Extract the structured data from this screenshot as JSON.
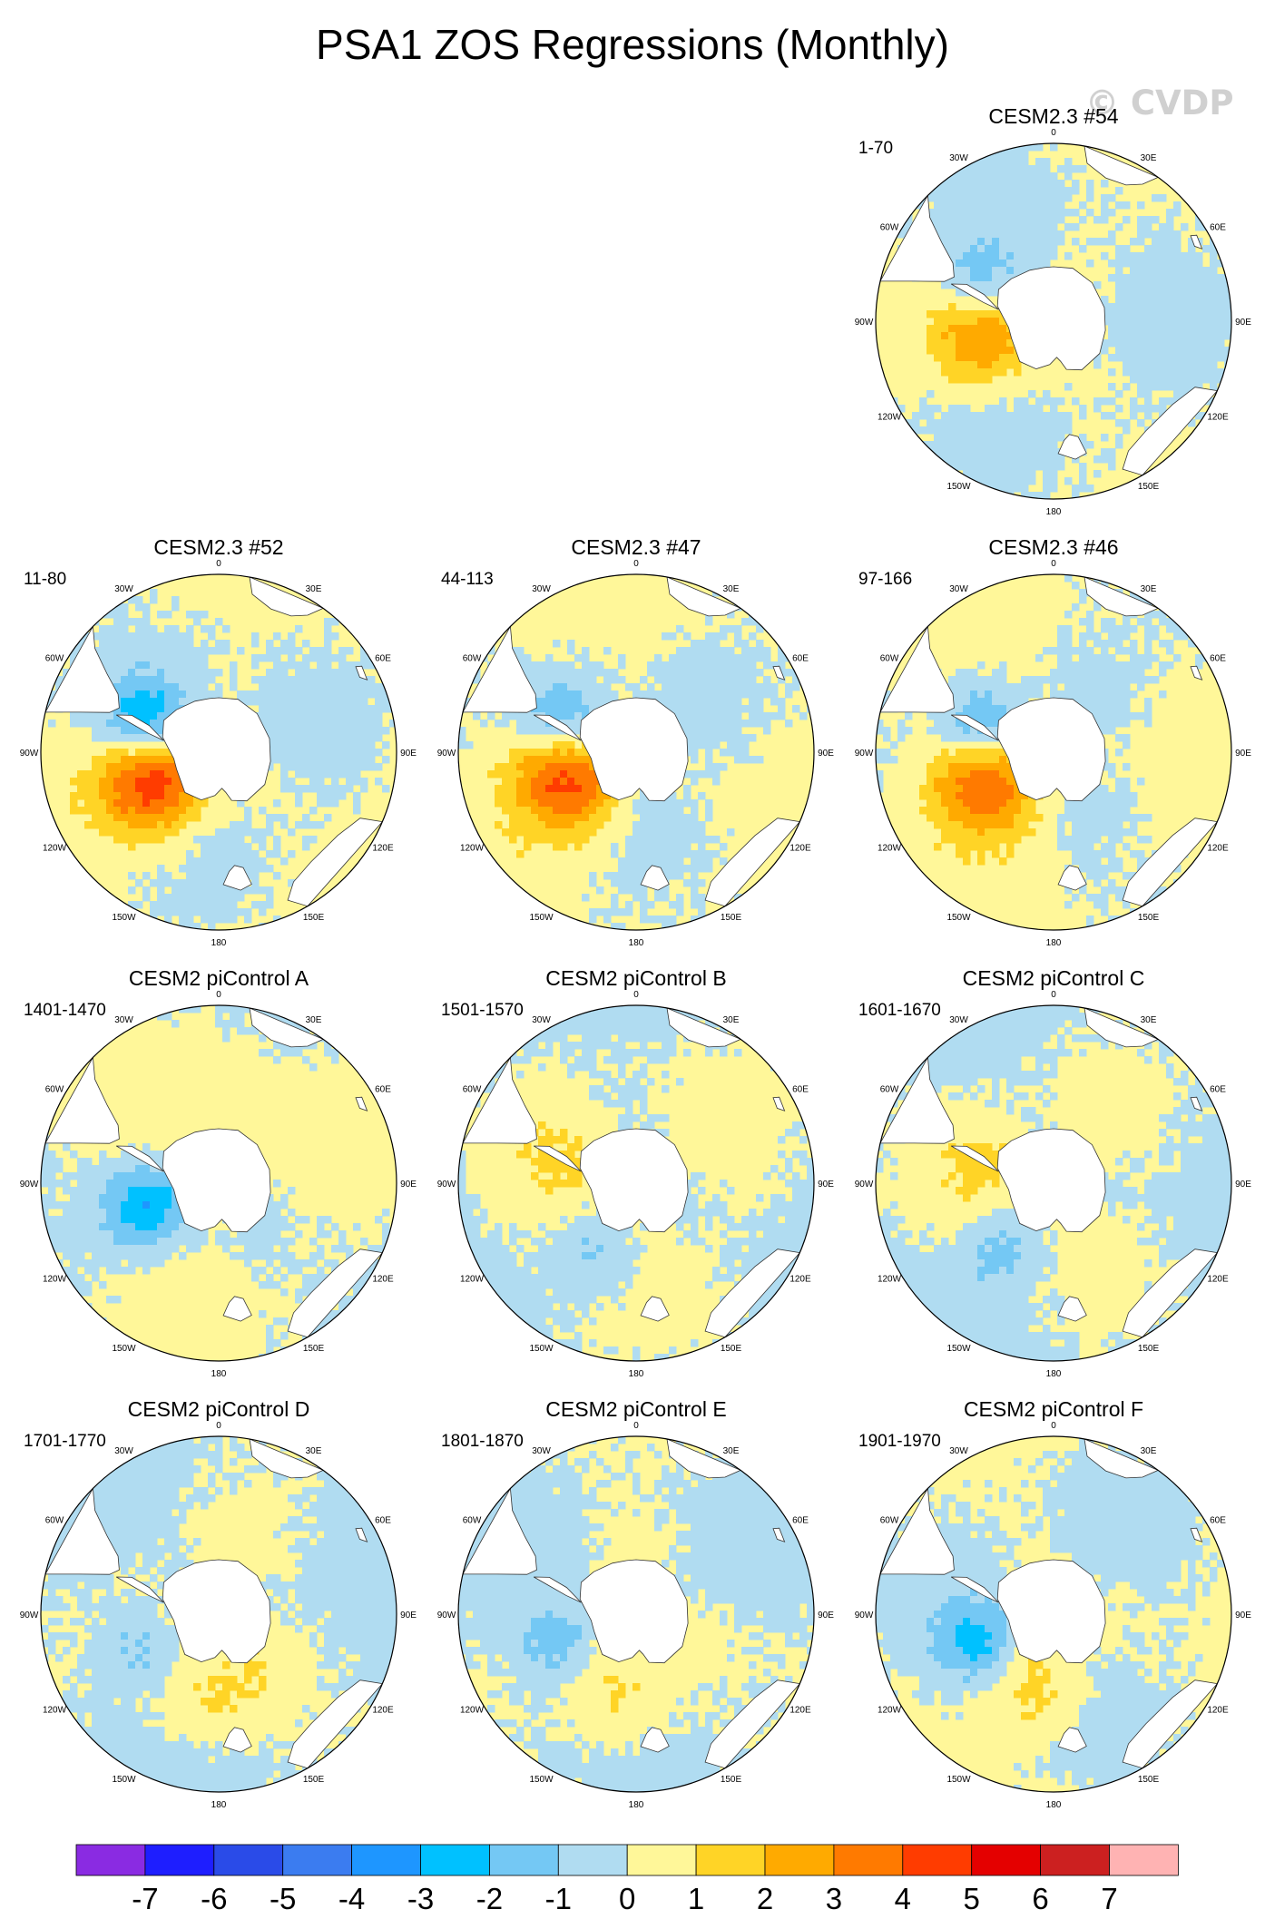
{
  "title": "PSA1 ZOS Regressions (Monthly)",
  "watermark": "© CVDP",
  "longitude_labels": [
    "0",
    "30E",
    "60E",
    "90E",
    "120E",
    "150E",
    "180",
    "150W",
    "120W",
    "90W",
    "60W",
    "30W"
  ],
  "panels": [
    {
      "title": "CESM2.3 #54",
      "years": "1-70",
      "row": 0,
      "col": 2,
      "anomaly": {
        "positive_center_lon": 95,
        "positive_peak": 3.2,
        "negative_center_lon": 65,
        "negative_peak": -2.3
      }
    },
    {
      "title": "CESM2.3 #52",
      "years": "11-80",
      "row": 1,
      "col": 0,
      "anomaly": {
        "positive_center_lon": 110,
        "positive_peak": 4.8,
        "negative_center_lon": 68,
        "negative_peak": -3.2
      }
    },
    {
      "title": "CESM2.3 #47",
      "years": "44-113",
      "row": 1,
      "col": 1,
      "anomaly": {
        "positive_center_lon": 105,
        "positive_peak": 4.6,
        "negative_center_lon": 68,
        "negative_peak": -2.4
      }
    },
    {
      "title": "CESM2.3 #46",
      "years": "97-166",
      "row": 1,
      "col": 2,
      "anomaly": {
        "positive_center_lon": 108,
        "positive_peak": 4.2,
        "negative_center_lon": 68,
        "negative_peak": -2.5
      }
    },
    {
      "title": "CESM2 piControl A",
      "years": "1401-1470",
      "row": 2,
      "col": 0,
      "anomaly": {
        "positive_center_lon": 0,
        "positive_peak": 0.8,
        "negative_center_lon": 105,
        "negative_peak": -2.6
      }
    },
    {
      "title": "CESM2 piControl B",
      "years": "1501-1570",
      "row": 2,
      "col": 1,
      "anomaly": {
        "positive_center_lon": 80,
        "positive_peak": 0.8,
        "negative_center_lon": 150,
        "negative_peak": -1.2
      }
    },
    {
      "title": "CESM2 piControl C",
      "years": "1601-1670",
      "row": 2,
      "col": 2,
      "anomaly": {
        "positive_center_lon": 75,
        "positive_peak": 0.8,
        "negative_center_lon": 140,
        "negative_peak": -1.3
      }
    },
    {
      "title": "CESM2 piControl D",
      "years": "1701-1770",
      "row": 3,
      "col": 0,
      "anomaly": {
        "positive_center_lon": 170,
        "positive_peak": 1.2,
        "negative_center_lon": 110,
        "negative_peak": -1.6
      }
    },
    {
      "title": "CESM2 piControl E",
      "years": "1801-1870",
      "row": 3,
      "col": 1,
      "anomaly": {
        "positive_center_lon": 165,
        "positive_peak": 1.3,
        "negative_center_lon": 110,
        "negative_peak": -1.8
      }
    },
    {
      "title": "CESM2 piControl F",
      "years": "1901-1970",
      "row": 3,
      "col": 2,
      "anomaly": {
        "positive_center_lon": 165,
        "positive_peak": 1.4,
        "negative_center_lon": 108,
        "negative_peak": -2.3
      }
    }
  ],
  "colorbar": {
    "labels": [
      "-7",
      "-6",
      "-5",
      "-4",
      "-3",
      "-2",
      "-1",
      "0",
      "1",
      "2",
      "3",
      "4",
      "5",
      "6",
      "7"
    ],
    "colors": [
      "#8a2be2",
      "#1e1eff",
      "#2a4be8",
      "#3b7cf0",
      "#1e96ff",
      "#00c1ff",
      "#74c8f4",
      "#b0dcf1",
      "#fff799",
      "#ffd426",
      "#ffaa00",
      "#ff7a00",
      "#ff3c00",
      "#e40000",
      "#cc2020",
      "#ffb3b3"
    ]
  }
}
